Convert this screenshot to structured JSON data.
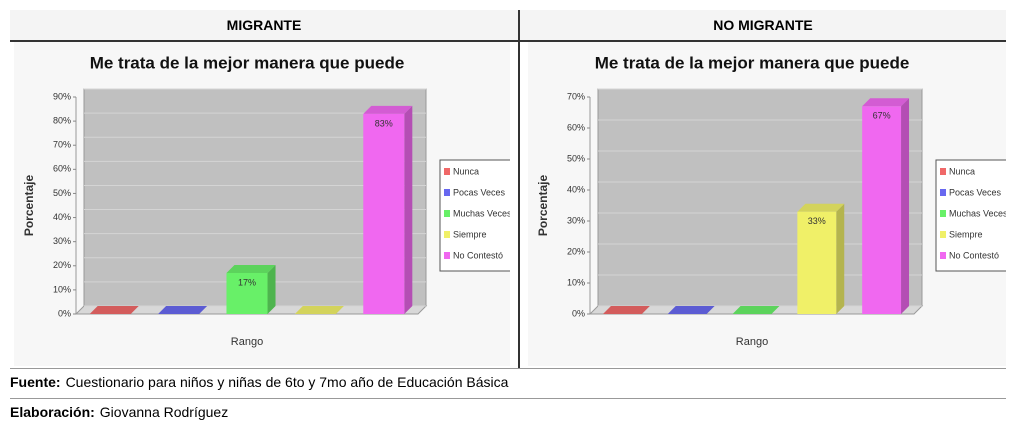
{
  "table": {
    "headers": [
      "MIGRANTE",
      "NO MIGRANTE"
    ]
  },
  "footer": {
    "source": {
      "label": "Fuente:",
      "text": "Cuestionario para niños y niñas de 6to y 7mo año de Educación Básica"
    },
    "credit": {
      "label": "Elaboración:",
      "text": "Giovanna Rodríguez"
    }
  },
  "chart_data": [
    {
      "type": "bar3d",
      "title": "Me trata de la mejor manera que puede",
      "xlabel": "Rango",
      "ylabel": "Porcentaje",
      "categories": [
        "Nunca",
        "Pocas Veces",
        "Muchas Veces",
        "Siempre",
        "No Contestó"
      ],
      "values": [
        0,
        0,
        17,
        0,
        83
      ],
      "value_labels": [
        null,
        null,
        "17%",
        null,
        "83%"
      ],
      "colors": [
        "#f06868",
        "#6868f0",
        "#68f068",
        "#f0f068",
        "#f068f0"
      ],
      "ylim": [
        0,
        90
      ],
      "yticks": [
        {
          "value": 0,
          "label": "0%"
        },
        {
          "value": 10,
          "label": "10%"
        },
        {
          "value": 20,
          "label": "20%"
        },
        {
          "value": 30,
          "label": "30%"
        },
        {
          "value": 40,
          "label": "40%"
        },
        {
          "value": 50,
          "label": "50%"
        },
        {
          "value": 60,
          "label": "60%"
        },
        {
          "value": 70,
          "label": "70%"
        },
        {
          "value": 80,
          "label": "80%"
        },
        {
          "value": 90,
          "label": "90%"
        }
      ],
      "grid": true,
      "legend": "right"
    },
    {
      "type": "bar3d",
      "title": "Me trata de la mejor manera que puede",
      "xlabel": "Rango",
      "ylabel": "Porcentaje",
      "categories": [
        "Nunca",
        "Pocas Veces",
        "Muchas Veces",
        "Siempre",
        "No Contestó"
      ],
      "values": [
        0,
        0,
        0,
        33,
        67
      ],
      "value_labels": [
        null,
        null,
        null,
        "33%",
        "67%"
      ],
      "colors": [
        "#f06868",
        "#6868f0",
        "#68f068",
        "#f0f068",
        "#f068f0"
      ],
      "ylim": [
        0,
        70
      ],
      "yticks": [
        {
          "value": 0,
          "label": "0%"
        },
        {
          "value": 10,
          "label": "10%"
        },
        {
          "value": 20,
          "label": "20%"
        },
        {
          "value": 30,
          "label": "30%"
        },
        {
          "value": 40,
          "label": "40%"
        },
        {
          "value": 50,
          "label": "50%"
        },
        {
          "value": 60,
          "label": "60%"
        },
        {
          "value": 70,
          "label": "70%"
        }
      ],
      "grid": true,
      "legend": "right"
    }
  ]
}
